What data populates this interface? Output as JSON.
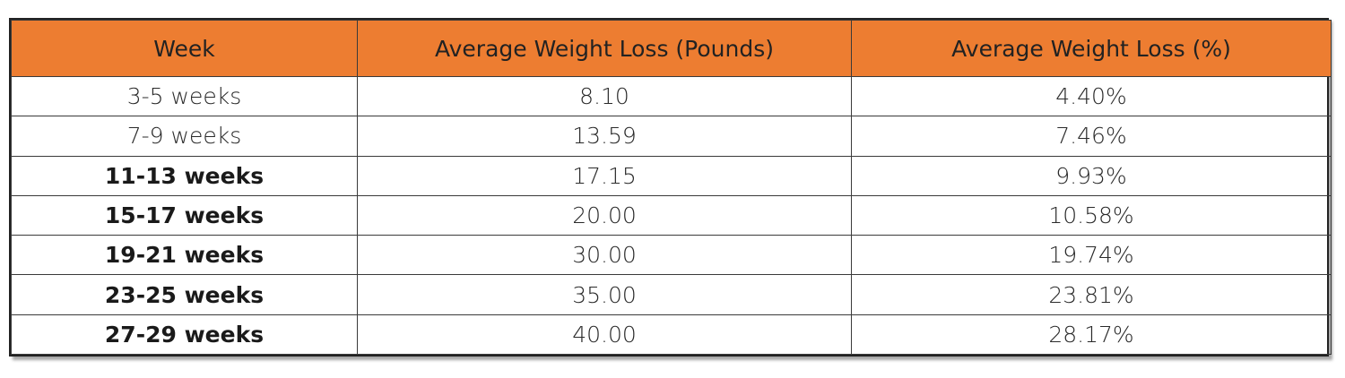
{
  "colors": {
    "header_bg": "#ED7D31",
    "border": "#3a3a3a",
    "body_bg": "#ffffff"
  },
  "table": {
    "headers": [
      "Week",
      "Average Weight Loss (Pounds)",
      "Average Weight Loss (%)"
    ],
    "rows": [
      {
        "week": "3-5 weeks",
        "pounds": "8.10",
        "percent": "4.40%",
        "bold": false
      },
      {
        "week": "7-9 weeks",
        "pounds": "13.59",
        "percent": "7.46%",
        "bold": false
      },
      {
        "week": "11-13 weeks",
        "pounds": "17.15",
        "percent": "9.93%",
        "bold": true
      },
      {
        "week": "15-17 weeks",
        "pounds": "20.00",
        "percent": "10.58%",
        "bold": true
      },
      {
        "week": "19-21 weeks",
        "pounds": "30.00",
        "percent": "19.74%",
        "bold": true
      },
      {
        "week": "23-25 weeks",
        "pounds": "35.00",
        "percent": "23.81%",
        "bold": true
      },
      {
        "week": "27-29 weeks",
        "pounds": "40.00",
        "percent": "28.17%",
        "bold": true
      }
    ]
  }
}
